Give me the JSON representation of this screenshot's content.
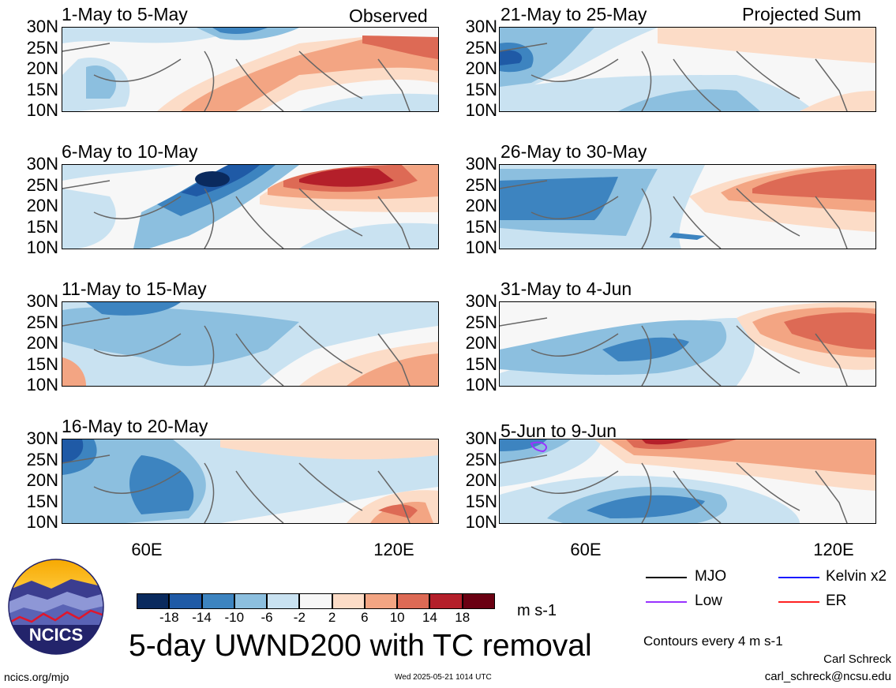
{
  "panels_left": [
    {
      "title": "1-May to 5-May",
      "tag": "Observed"
    },
    {
      "title": "6-May to 10-May",
      "tag": ""
    },
    {
      "title": "11-May to 15-May",
      "tag": ""
    },
    {
      "title": "16-May to 20-May",
      "tag": ""
    }
  ],
  "panels_right": [
    {
      "title": "21-May to 25-May",
      "tag": "Projected Sum"
    },
    {
      "title": "26-May to 30-May",
      "tag": ""
    },
    {
      "title": "31-May to 4-Jun",
      "tag": ""
    },
    {
      "title": "5-Jun to 9-Jun",
      "tag": ""
    }
  ],
  "lat_labels": [
    "30N",
    "25N",
    "20N",
    "15N",
    "10N"
  ],
  "lon_labels": [
    "60E",
    "120E"
  ],
  "colorbar": {
    "colors": [
      "#0a2a5e",
      "#1f5aa6",
      "#3d84c0",
      "#8cbfdf",
      "#c9e2f1",
      "#f7f7f7",
      "#fcdcc7",
      "#f3a583",
      "#dd6a55",
      "#b41f2a",
      "#6a0012"
    ],
    "labels": [
      "-18",
      "-14",
      "-10",
      "-6",
      "-2",
      "2",
      "6",
      "10",
      "14",
      "18"
    ],
    "units": "m s-1"
  },
  "legend": [
    {
      "label": "MJO",
      "color": "#000000"
    },
    {
      "label": "Kelvin x2",
      "color": "#1a1aff"
    },
    {
      "label": "Low",
      "color": "#9933ff"
    },
    {
      "label": "ER",
      "color": "#ff2222"
    }
  ],
  "main_title": "5-day UWND200 with TC removal",
  "contour_note": "Contours every 4 m s-1",
  "logo_text": "NCICS",
  "url": "ncics.org/mjo",
  "timestamp": "Wed 2025-05-21 1014 UTC",
  "author": "Carl Schreck",
  "email": "carl_schreck@ncsu.edu"
}
